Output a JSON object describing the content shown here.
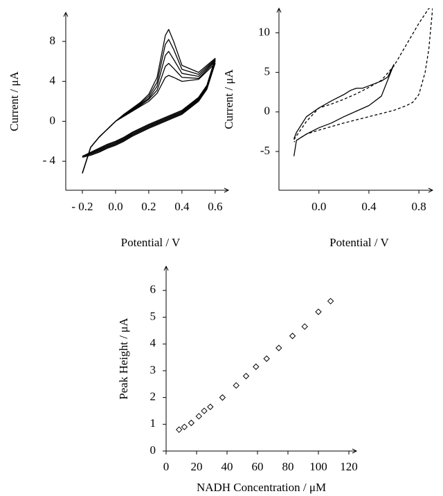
{
  "chart_data": [
    {
      "type": "line",
      "xlabel": "Potential / V",
      "ylabel": "Current / μA",
      "xlim": [
        -0.3,
        0.68
      ],
      "ylim": [
        -6.9,
        10.9
      ],
      "xticks": [
        {
          "value": -0.2,
          "label": "- 0.2"
        },
        {
          "value": 0,
          "label": "0.0"
        },
        0.2,
        0.4,
        0.6
      ],
      "yticks": [
        {
          "value": -4,
          "label": "- 4"
        },
        0,
        4,
        8
      ],
      "x": [
        -0.2,
        -0.15,
        -0.1,
        -0.05,
        0,
        0.05,
        0.1,
        0.15,
        0.2,
        0.25,
        0.3,
        0.32,
        0.35,
        0.4,
        0.5,
        0.6,
        0.55,
        0.5,
        0.4,
        0.3,
        0.2,
        0.1,
        0.05,
        0,
        -0.05,
        -0.1,
        -0.15,
        -0.2
      ],
      "series": [
        {
          "color": "#000000",
          "line_style": "solid",
          "values": [
            -5.2,
            -2.6,
            -1.6,
            -0.8,
            0,
            0.7,
            1.3,
            1.9,
            2.7,
            4.4,
            8.6,
            9.2,
            8.0,
            5.6,
            4.9,
            6.3,
            3.6,
            2.4,
            1.1,
            0.4,
            -0.3,
            -1.1,
            -1.6,
            -2.0,
            -2.3,
            -2.7,
            -3.1,
            -3.5
          ]
        },
        {
          "color": "#000000",
          "line_style": "solid",
          "values": [
            -5.2,
            -2.6,
            -1.6,
            -0.8,
            0,
            0.65,
            1.2,
            1.8,
            2.5,
            3.9,
            7.7,
            8.2,
            7.2,
            5.2,
            4.7,
            6.2,
            3.5,
            2.3,
            1.0,
            0.3,
            -0.4,
            -1.2,
            -1.7,
            -2.1,
            -2.4,
            -2.8,
            -3.2,
            -3.5
          ]
        },
        {
          "color": "#000000",
          "line_style": "solid",
          "values": [
            -5.2,
            -2.6,
            -1.6,
            -0.8,
            0,
            0.6,
            1.1,
            1.7,
            2.3,
            3.5,
            6.6,
            7.0,
            6.2,
            4.8,
            4.5,
            6.1,
            3.4,
            2.2,
            0.9,
            0.2,
            -0.5,
            -1.3,
            -1.8,
            -2.2,
            -2.5,
            -2.9,
            -3.2,
            -3.5
          ]
        },
        {
          "color": "#000000",
          "line_style": "solid",
          "values": [
            -5.2,
            -2.6,
            -1.6,
            -0.8,
            0,
            0.55,
            1.05,
            1.6,
            2.2,
            3.1,
            5.5,
            5.8,
            5.3,
            4.4,
            4.3,
            6.0,
            3.3,
            2.1,
            0.8,
            0.1,
            -0.6,
            -1.4,
            -1.9,
            -2.3,
            -2.6,
            -3.0,
            -3.3,
            -3.5
          ]
        },
        {
          "color": "#000000",
          "line_style": "solid",
          "values": [
            -5.2,
            -2.6,
            -1.6,
            -0.8,
            0,
            0.5,
            1.0,
            1.5,
            2.0,
            2.8,
            4.4,
            4.6,
            4.4,
            4.0,
            4.2,
            5.8,
            3.2,
            2.0,
            0.7,
            0.0,
            -0.7,
            -1.5,
            -2.0,
            -2.4,
            -2.7,
            -3.1,
            -3.4,
            -3.6
          ]
        }
      ]
    },
    {
      "type": "line",
      "xlabel": "Potential / V",
      "ylabel": "Current / μA",
      "xlim": [
        -0.32,
        0.91
      ],
      "ylim": [
        -9.9,
        13.1
      ],
      "xticks": [
        {
          "value": 0,
          "label": "0.0"
        },
        0.4,
        0.8
      ],
      "yticks": [
        -5,
        0,
        5,
        10
      ],
      "series": [
        {
          "color": "#000000",
          "line_style": "solid",
          "x": [
            -0.2,
            -0.18,
            -0.1,
            0,
            0.1,
            0.2,
            0.3,
            0.4,
            0.5,
            0.6,
            0.55,
            0.5,
            0.4,
            0.35,
            0.3,
            0.25,
            0.2,
            0.1,
            0,
            -0.1,
            -0.18,
            -0.2
          ],
          "values": [
            -5.6,
            -3.6,
            -2.8,
            -2.0,
            -1.4,
            -0.6,
            0.1,
            0.8,
            2.0,
            6.0,
            4.4,
            3.9,
            3.3,
            3.0,
            3.0,
            2.7,
            2.2,
            1.4,
            0.5,
            -0.6,
            -2.6,
            -3.4
          ]
        },
        {
          "color": "#000000",
          "line_style": "dashed",
          "x": [
            -0.2,
            -0.1,
            0,
            0.1,
            0.2,
            0.3,
            0.4,
            0.5,
            0.6,
            0.7,
            0.8,
            0.88,
            0.91,
            0.88,
            0.85,
            0.8,
            0.75,
            0.7,
            0.6,
            0.4,
            0.2,
            0,
            -0.1,
            -0.2
          ],
          "values": [
            -3.5,
            -1.2,
            0.5,
            1.0,
            1.6,
            2.3,
            3.1,
            4.0,
            5.8,
            8.5,
            11.2,
            13.1,
            13.1,
            8.0,
            5.0,
            2.2,
            1.2,
            0.8,
            0.2,
            -0.6,
            -1.4,
            -2.3,
            -2.8,
            -3.8
          ]
        }
      ]
    },
    {
      "type": "scatter",
      "xlabel": "NADH Concentration / μM",
      "ylabel": "Peak Height / μA",
      "xlim": [
        0,
        125
      ],
      "ylim": [
        0,
        6.9
      ],
      "xticks": [
        0,
        20,
        40,
        60,
        80,
        100,
        120
      ],
      "yticks": [
        0,
        1,
        2,
        3,
        4,
        5,
        6
      ],
      "marker": "diamond",
      "color": "#000000",
      "x": [
        8.5,
        12,
        16.5,
        21.5,
        25,
        29,
        37,
        46,
        52.5,
        59,
        66,
        74,
        83,
        91,
        100,
        108
      ],
      "values": [
        0.8,
        0.9,
        1.05,
        1.3,
        1.5,
        1.65,
        2.0,
        2.45,
        2.8,
        3.15,
        3.45,
        3.85,
        4.3,
        4.65,
        5.2,
        5.6
      ]
    }
  ]
}
